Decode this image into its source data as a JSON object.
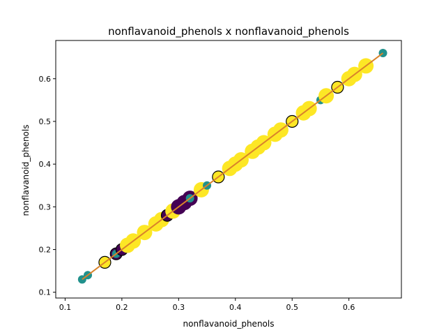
{
  "chart_data": {
    "type": "scatter",
    "title": "nonflavanoid_phenols x nonflavanoid_phenols",
    "xlabel": "nonflavanoid_phenols",
    "ylabel": "nonflavanoid_phenols",
    "xlim": [
      0.0835,
      0.6925
    ],
    "ylim": [
      0.0865,
      0.6895
    ],
    "xticks": [
      0.1,
      0.2,
      0.3,
      0.4,
      0.5,
      0.6
    ],
    "yticks": [
      0.1,
      0.2,
      0.3,
      0.4,
      0.5,
      0.6
    ],
    "grid": false,
    "colors": {
      "class_0": "#440154",
      "class_1": "#21918c",
      "class_2": "#fde725",
      "fit_line": "#d9822b"
    },
    "fit_line": {
      "x": [
        0.13,
        0.66
      ],
      "y": [
        0.13,
        0.66
      ]
    },
    "points": [
      {
        "x": 0.13,
        "y": 0.13,
        "class": "class_1",
        "size": "small"
      },
      {
        "x": 0.14,
        "y": 0.14,
        "class": "class_1",
        "size": "small"
      },
      {
        "x": 0.17,
        "y": 0.17,
        "class": "class_2",
        "size": "medium"
      },
      {
        "x": 0.19,
        "y": 0.19,
        "class": "class_0",
        "size": "medium"
      },
      {
        "x": 0.19,
        "y": 0.19,
        "class": "class_1",
        "size": "small"
      },
      {
        "x": 0.2,
        "y": 0.2,
        "class": "class_0",
        "size": "medium"
      },
      {
        "x": 0.21,
        "y": 0.21,
        "class": "class_2",
        "size": "large"
      },
      {
        "x": 0.22,
        "y": 0.22,
        "class": "class_2",
        "size": "large"
      },
      {
        "x": 0.24,
        "y": 0.24,
        "class": "class_2",
        "size": "large"
      },
      {
        "x": 0.26,
        "y": 0.26,
        "class": "class_2",
        "size": "large"
      },
      {
        "x": 0.27,
        "y": 0.27,
        "class": "class_2",
        "size": "large"
      },
      {
        "x": 0.28,
        "y": 0.28,
        "class": "class_0",
        "size": "medium"
      },
      {
        "x": 0.29,
        "y": 0.29,
        "class": "class_2",
        "size": "large"
      },
      {
        "x": 0.3,
        "y": 0.3,
        "class": "class_0",
        "size": "large"
      },
      {
        "x": 0.31,
        "y": 0.31,
        "class": "class_0",
        "size": "large"
      },
      {
        "x": 0.32,
        "y": 0.32,
        "class": "class_0",
        "size": "large"
      },
      {
        "x": 0.32,
        "y": 0.32,
        "class": "class_1",
        "size": "small"
      },
      {
        "x": 0.34,
        "y": 0.34,
        "class": "class_2",
        "size": "large"
      },
      {
        "x": 0.35,
        "y": 0.35,
        "class": "class_1",
        "size": "small"
      },
      {
        "x": 0.37,
        "y": 0.37,
        "class": "class_2",
        "size": "medium"
      },
      {
        "x": 0.39,
        "y": 0.39,
        "class": "class_2",
        "size": "large"
      },
      {
        "x": 0.4,
        "y": 0.4,
        "class": "class_2",
        "size": "large"
      },
      {
        "x": 0.41,
        "y": 0.41,
        "class": "class_2",
        "size": "large"
      },
      {
        "x": 0.43,
        "y": 0.43,
        "class": "class_2",
        "size": "large"
      },
      {
        "x": 0.44,
        "y": 0.44,
        "class": "class_2",
        "size": "large"
      },
      {
        "x": 0.45,
        "y": 0.45,
        "class": "class_2",
        "size": "large"
      },
      {
        "x": 0.47,
        "y": 0.47,
        "class": "class_2",
        "size": "large"
      },
      {
        "x": 0.48,
        "y": 0.48,
        "class": "class_2",
        "size": "large"
      },
      {
        "x": 0.5,
        "y": 0.5,
        "class": "class_2",
        "size": "medium"
      },
      {
        "x": 0.52,
        "y": 0.52,
        "class": "class_2",
        "size": "large"
      },
      {
        "x": 0.53,
        "y": 0.53,
        "class": "class_2",
        "size": "large"
      },
      {
        "x": 0.55,
        "y": 0.55,
        "class": "class_1",
        "size": "small"
      },
      {
        "x": 0.56,
        "y": 0.56,
        "class": "class_2",
        "size": "large"
      },
      {
        "x": 0.58,
        "y": 0.58,
        "class": "class_2",
        "size": "medium"
      },
      {
        "x": 0.6,
        "y": 0.6,
        "class": "class_2",
        "size": "large"
      },
      {
        "x": 0.61,
        "y": 0.61,
        "class": "class_2",
        "size": "large"
      },
      {
        "x": 0.63,
        "y": 0.63,
        "class": "class_2",
        "size": "large"
      },
      {
        "x": 0.66,
        "y": 0.66,
        "class": "class_1",
        "size": "small"
      }
    ]
  }
}
